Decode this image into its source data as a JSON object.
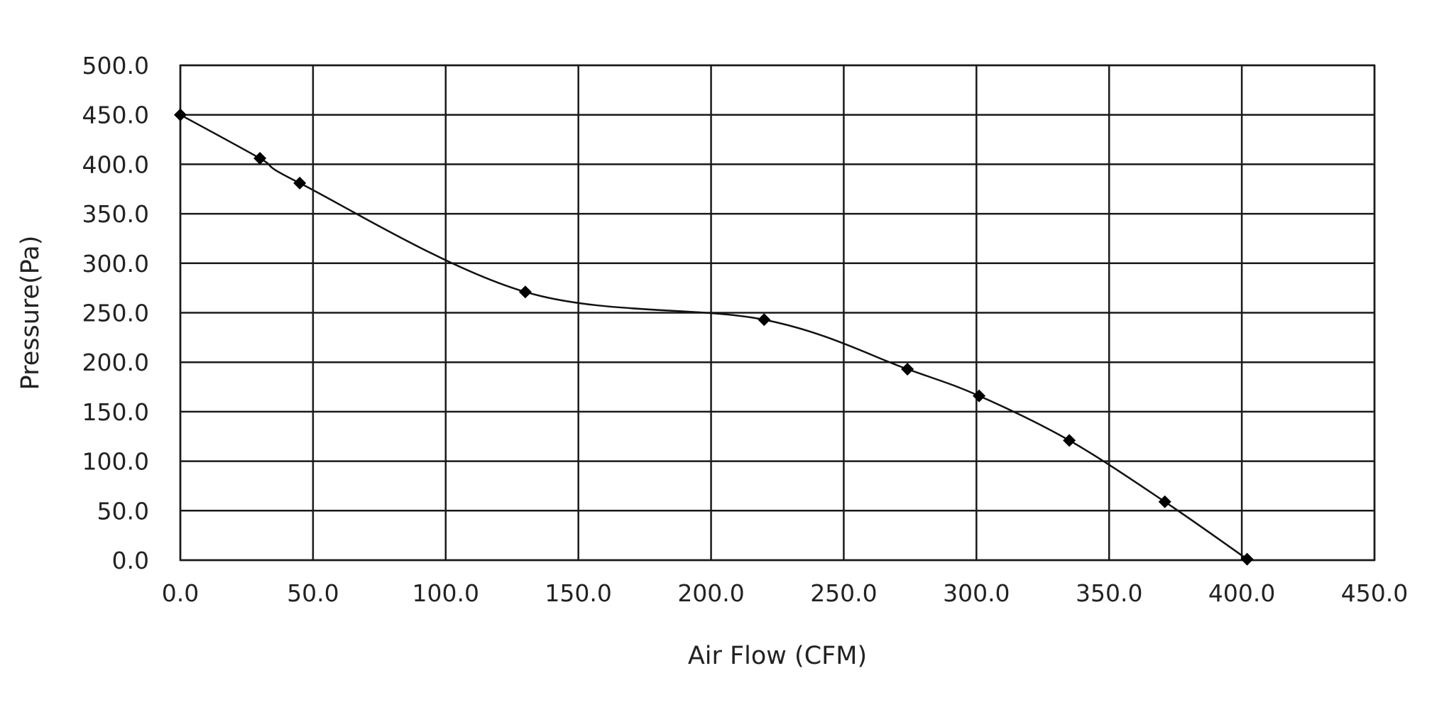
{
  "chart_data": {
    "type": "line",
    "title": "",
    "xlabel": "Air Flow (CFM)",
    "ylabel": "Pressure(Pa)",
    "xlim": [
      0,
      450
    ],
    "ylim": [
      0,
      500
    ],
    "xticks": [
      0,
      50,
      100,
      150,
      200,
      250,
      300,
      350,
      400,
      450
    ],
    "yticks": [
      0,
      50,
      100,
      150,
      200,
      250,
      300,
      350,
      400,
      450,
      500
    ],
    "xtick_labels": [
      "0.0",
      "50.0",
      "100.0",
      "150.0",
      "200.0",
      "250.0",
      "300.0",
      "350.0",
      "400.0",
      "450.0"
    ],
    "ytick_labels": [
      "0.0",
      "50.0",
      "100.0",
      "150.0",
      "200.0",
      "250.0",
      "300.0",
      "350.0",
      "400.0",
      "450.0",
      "500.0"
    ],
    "grid": true,
    "legend": "none",
    "marker": "diamond",
    "line_color": "#111111",
    "grid_color": "#1a1a1a",
    "series": [
      {
        "x": [
          0,
          30,
          45,
          130,
          220,
          274,
          301,
          335,
          371,
          402
        ],
        "y": [
          450,
          406,
          381,
          271,
          243,
          193,
          166,
          121,
          59,
          1
        ]
      }
    ]
  }
}
